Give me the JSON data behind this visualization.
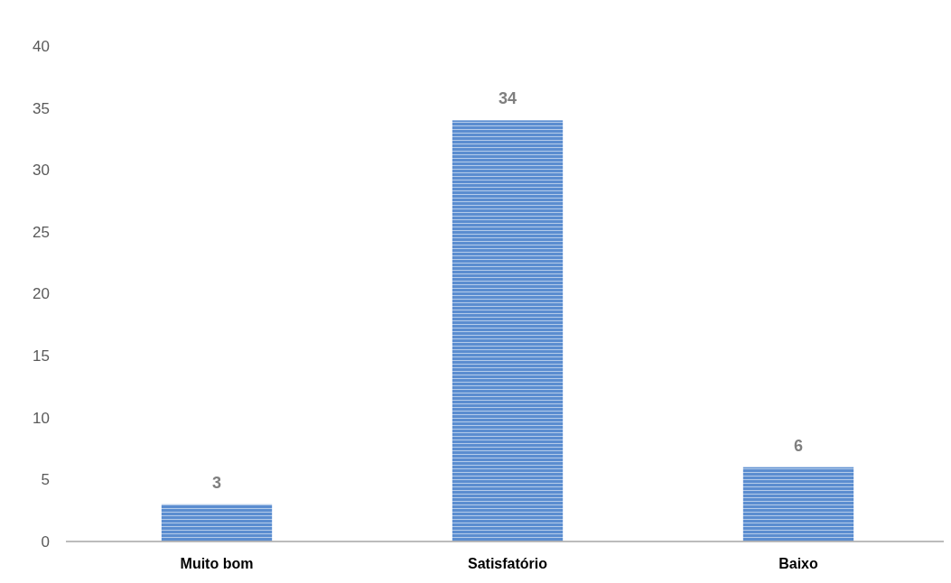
{
  "chart_data": {
    "type": "bar",
    "categories": [
      "Muito bom",
      "Satisfatório",
      "Baixo"
    ],
    "values": [
      3,
      34,
      6
    ],
    "color": "#5b8dd0",
    "ylim": [
      0,
      40
    ],
    "yticks": [
      0,
      5,
      10,
      15,
      20,
      25,
      30,
      35,
      40
    ],
    "grid": false,
    "data_labels": true
  }
}
